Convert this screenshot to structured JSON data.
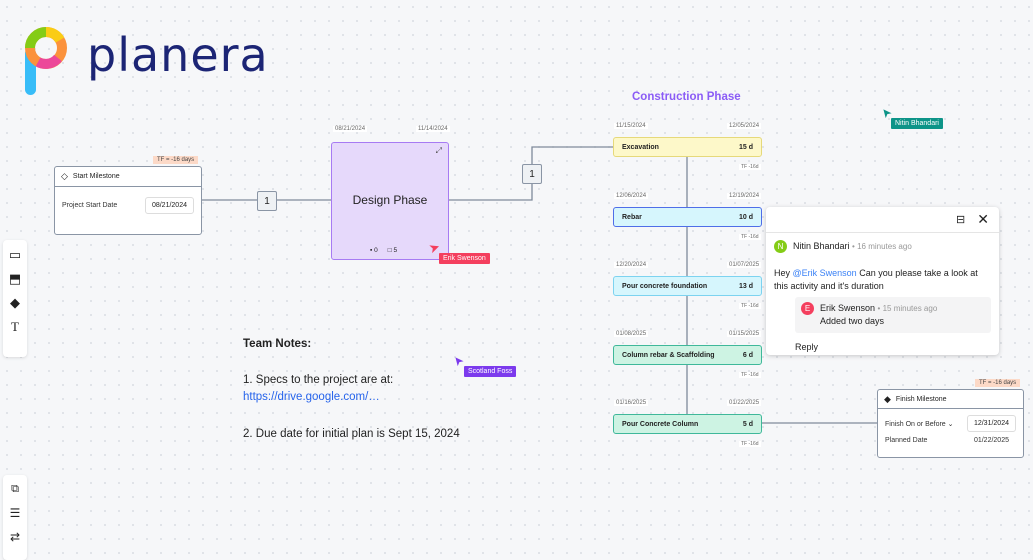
{
  "brand": {
    "name": "planera"
  },
  "start_milestone": {
    "title": "Start Milestone",
    "tf": "TF = -16 days",
    "label": "Project Start Date",
    "value": "08/21/2024"
  },
  "links": {
    "lag1": "1",
    "lag2": "1"
  },
  "design_phase": {
    "title": "Design Phase",
    "start": "08/21/2024",
    "end": "11/14/2024",
    "count_a": "0",
    "count_b": "5"
  },
  "construction": {
    "title": "Construction Phase",
    "tasks": [
      {
        "name": "Excavation",
        "duration": "15 d",
        "start": "11/15/2024",
        "end": "12/05/2024",
        "tf": "TF -16d",
        "bg": "#fdf8c9",
        "border": "#e6d97a"
      },
      {
        "name": "Rebar",
        "duration": "10 d",
        "start": "12/06/2024",
        "end": "12/19/2024",
        "tf": "TF -16d",
        "bg": "#d6f6fd",
        "border": "#4f6ee8"
      },
      {
        "name": "Pour concrete foundation",
        "duration": "13 d",
        "start": "12/20/2024",
        "end": "01/07/2025",
        "tf": "TF -16d",
        "bg": "#d6f6fd",
        "border": "#7dd3f0"
      },
      {
        "name": "Column rebar & Scaffolding",
        "duration": "6 d",
        "start": "01/08/2025",
        "end": "01/15/2025",
        "tf": "TF -16d",
        "bg": "#cdf3e3",
        "border": "#3fb89a"
      },
      {
        "name": "Pour Concrete Column",
        "duration": "5 d",
        "start": "01/16/2025",
        "end": "01/22/2025",
        "tf": "TF -16d",
        "bg": "#cdf3e3",
        "border": "#3fb89a"
      }
    ]
  },
  "finish_milestone": {
    "title": "Finish Milestone",
    "tf": "TF = -16 days",
    "constraint": "Finish On or Before",
    "constraint_date": "12/31/2024",
    "planned_label": "Planned Date",
    "planned_date": "01/22/2025"
  },
  "comments": {
    "thread": [
      {
        "initial": "N",
        "author": "Nitin Bhandari",
        "time": "16 minutes ago",
        "pre": "Hey ",
        "mention": "@Erik Swenson",
        "post": " Can you please take a look at this activity and it's duration",
        "color": "#84cc16"
      },
      {
        "initial": "E",
        "author": "Erik Swenson",
        "time": "15 minutes ago",
        "text": "Added two days",
        "color": "#f43f5e"
      }
    ],
    "reply": "Reply"
  },
  "cursors": [
    {
      "name": "Erik Swenson",
      "color": "#f43f5e"
    },
    {
      "name": "Nitin Bhandari",
      "color": "#0d9488"
    },
    {
      "name": "Scotland Foss",
      "color": "#7c3aed"
    }
  ],
  "notes": {
    "title": "Team Notes:",
    "item1": "1. Specs to the project are at:",
    "link": "https://drive.google.com/…",
    "item2": "2. Due date for initial plan is Sept 15, 2024"
  }
}
